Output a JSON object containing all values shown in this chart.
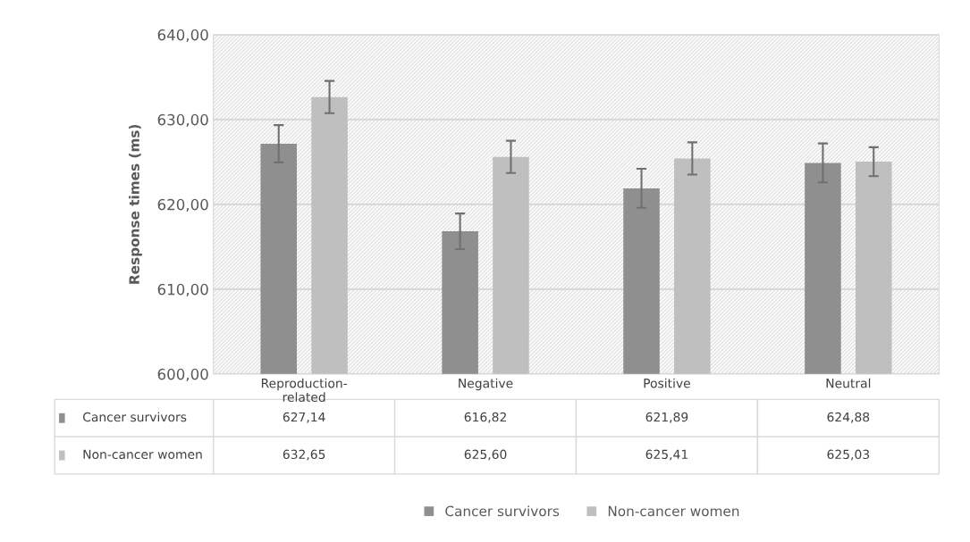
{
  "chart_data": {
    "type": "bar",
    "ylabel": "Response times (ms)",
    "categories": [
      "Reproduction-\nrelated",
      "Negative",
      "Positive",
      "Neutral"
    ],
    "series": [
      {
        "name": "Cancer survivors",
        "color": "#8f8f8f",
        "values": [
          627.14,
          616.82,
          621.89,
          624.88
        ],
        "errors": [
          2.2,
          2.1,
          2.3,
          2.3
        ],
        "value_labels": [
          "627,14",
          "616,82",
          "621,89",
          "624,88"
        ]
      },
      {
        "name": "Non-cancer women",
        "color": "#bfbfbf",
        "values": [
          632.65,
          625.6,
          625.41,
          625.03
        ],
        "errors": [
          1.9,
          1.9,
          1.9,
          1.7
        ],
        "value_labels": [
          "632,65",
          "625,60",
          "625,41",
          "625,03"
        ]
      }
    ],
    "ylim": [
      600,
      640
    ],
    "yticks": [
      {
        "value": 600,
        "label": "600,00"
      },
      {
        "value": 610,
        "label": "610,00"
      },
      {
        "value": 620,
        "label": "620,00"
      },
      {
        "value": 630,
        "label": "630,00"
      },
      {
        "value": 640,
        "label": "640,00"
      }
    ],
    "grid": "y",
    "legend": "bottom"
  }
}
